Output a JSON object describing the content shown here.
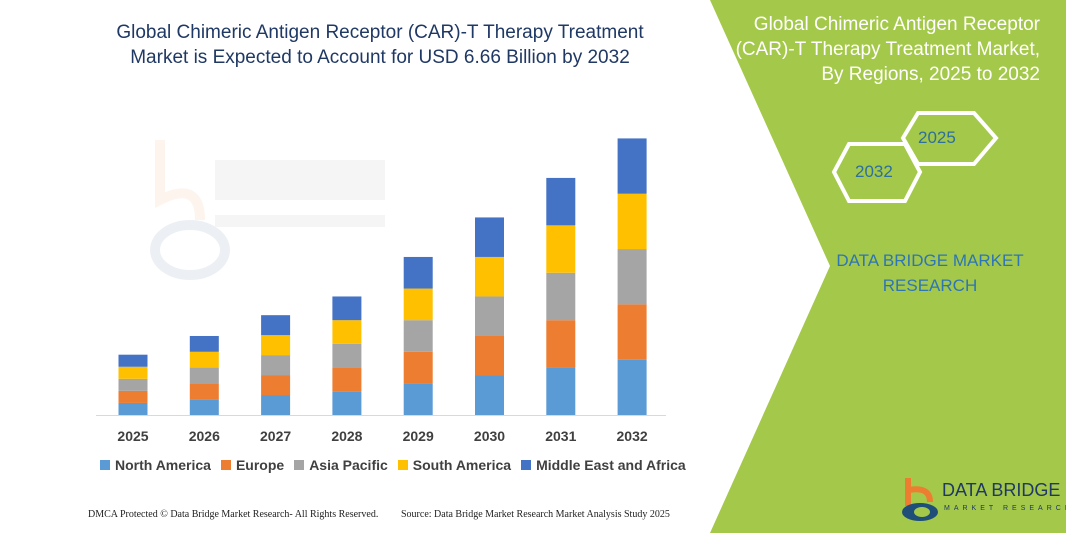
{
  "title": "Global Chimeric Antigen Receptor (CAR)-T Therapy Treatment Market is Expected to Account for USD 6.66 Billion by 2032",
  "side_panel": {
    "title": "Global Chimeric Antigen Receptor (CAR)-T Therapy Treatment Market, By Regions, 2025 to 2032",
    "hex_start": "2025",
    "hex_end": "2032",
    "brand": "DATA BRIDGE MARKET RESEARCH",
    "color": "#a4c94a"
  },
  "logo": {
    "line1": "DATA BRIDGE",
    "line2": "MARKET RESEARCH"
  },
  "footer": {
    "left": "DMCA Protected © Data Bridge Market Research- All Rights Reserved.",
    "right": "Source: Data Bridge Market Research Market Analysis Study 2025"
  },
  "chart_data": {
    "type": "bar",
    "stacked": true,
    "categories": [
      "2025",
      "2026",
      "2027",
      "2028",
      "2029",
      "2030",
      "2031",
      "2032"
    ],
    "grid": false,
    "legend_position": "bottom",
    "series": [
      {
        "name": "North America",
        "color": "#5b9bd5",
        "values": [
          0.29,
          0.38,
          0.48,
          0.57,
          0.76,
          0.95,
          1.14,
          1.33
        ]
      },
      {
        "name": "Europe",
        "color": "#ed7d31",
        "values": [
          0.29,
          0.38,
          0.48,
          0.57,
          0.76,
          0.95,
          1.14,
          1.33
        ]
      },
      {
        "name": "Asia Pacific",
        "color": "#a5a5a5",
        "values": [
          0.29,
          0.38,
          0.48,
          0.57,
          0.76,
          0.95,
          1.14,
          1.33
        ]
      },
      {
        "name": "South America",
        "color": "#ffc000",
        "values": [
          0.29,
          0.38,
          0.48,
          0.57,
          0.76,
          0.95,
          1.14,
          1.33
        ]
      },
      {
        "name": "Middle East and Africa",
        "color": "#4472c4",
        "values": [
          0.29,
          0.38,
          0.48,
          0.57,
          0.76,
          0.95,
          1.14,
          1.33
        ]
      }
    ]
  }
}
